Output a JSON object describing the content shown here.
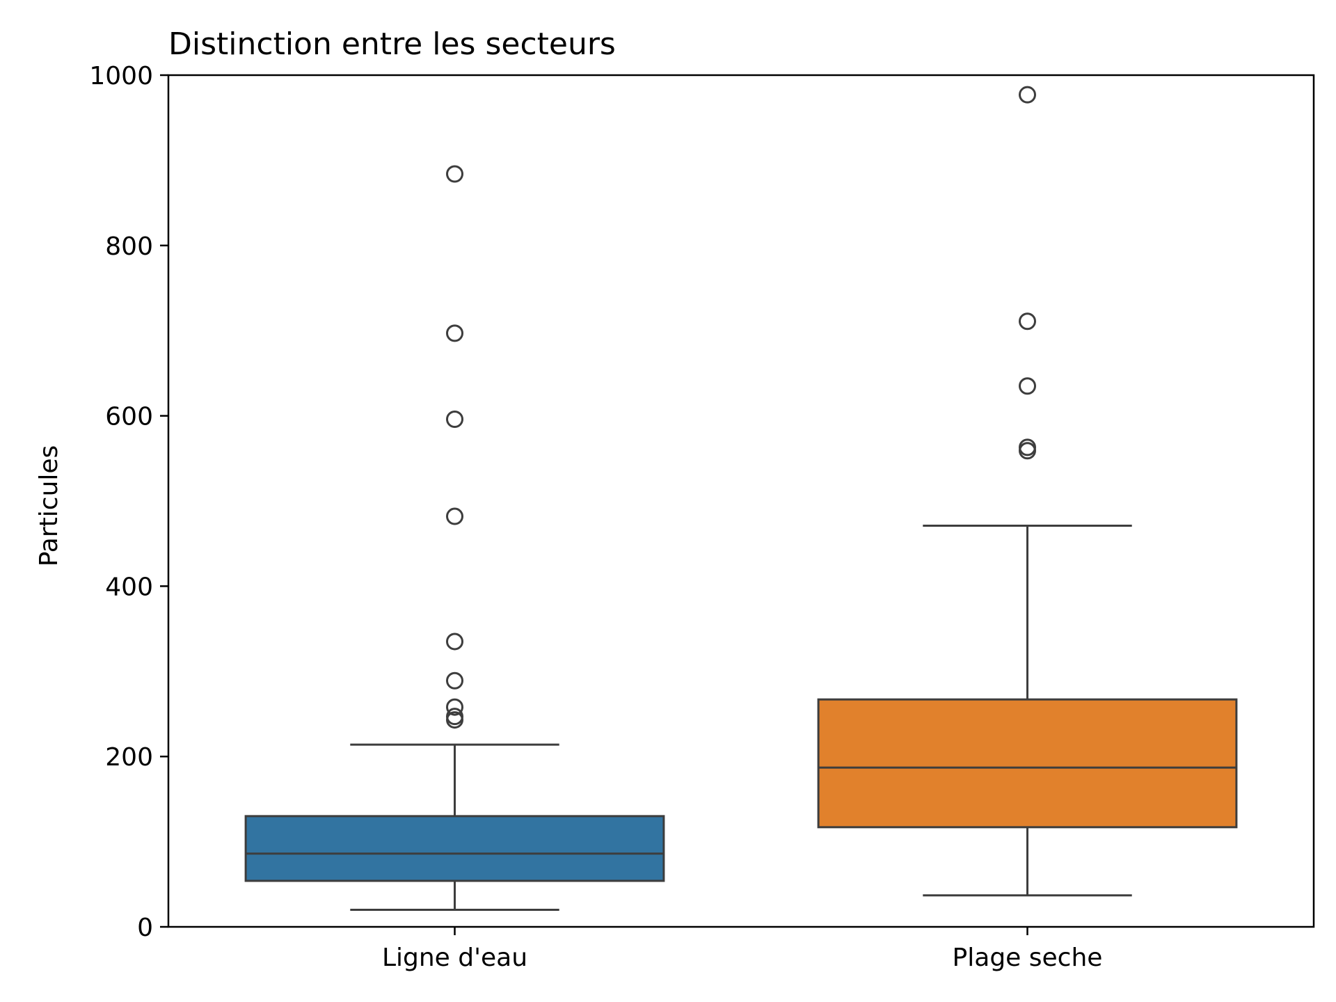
{
  "chart_data": {
    "type": "box",
    "title": "Distinction entre les secteurs",
    "xlabel": "",
    "ylabel": "Particules",
    "ylim": [
      0,
      1000
    ],
    "yticks": [
      0,
      200,
      400,
      600,
      800,
      1000
    ],
    "ytick_labels": [
      "0",
      "200",
      "400",
      "600",
      "800",
      "1000"
    ],
    "grid": false,
    "categories": [
      "Ligne d'eau",
      "Plage seche"
    ],
    "boxes": [
      {
        "category": "Ligne d'eau",
        "color": "#3274a1",
        "whisker_low": 20,
        "q1": 54,
        "median": 86,
        "q3": 130,
        "whisker_high": 214,
        "outliers": [
          243,
          247,
          258,
          289,
          335,
          482,
          596,
          697,
          884
        ]
      },
      {
        "category": "Plage seche",
        "color": "#e1812c",
        "whisker_low": 37,
        "q1": 117,
        "median": 187,
        "q3": 267,
        "whisker_high": 471,
        "outliers": [
          559,
          563,
          635,
          711,
          977
        ]
      }
    ],
    "line_color": "#3d3d3d"
  }
}
